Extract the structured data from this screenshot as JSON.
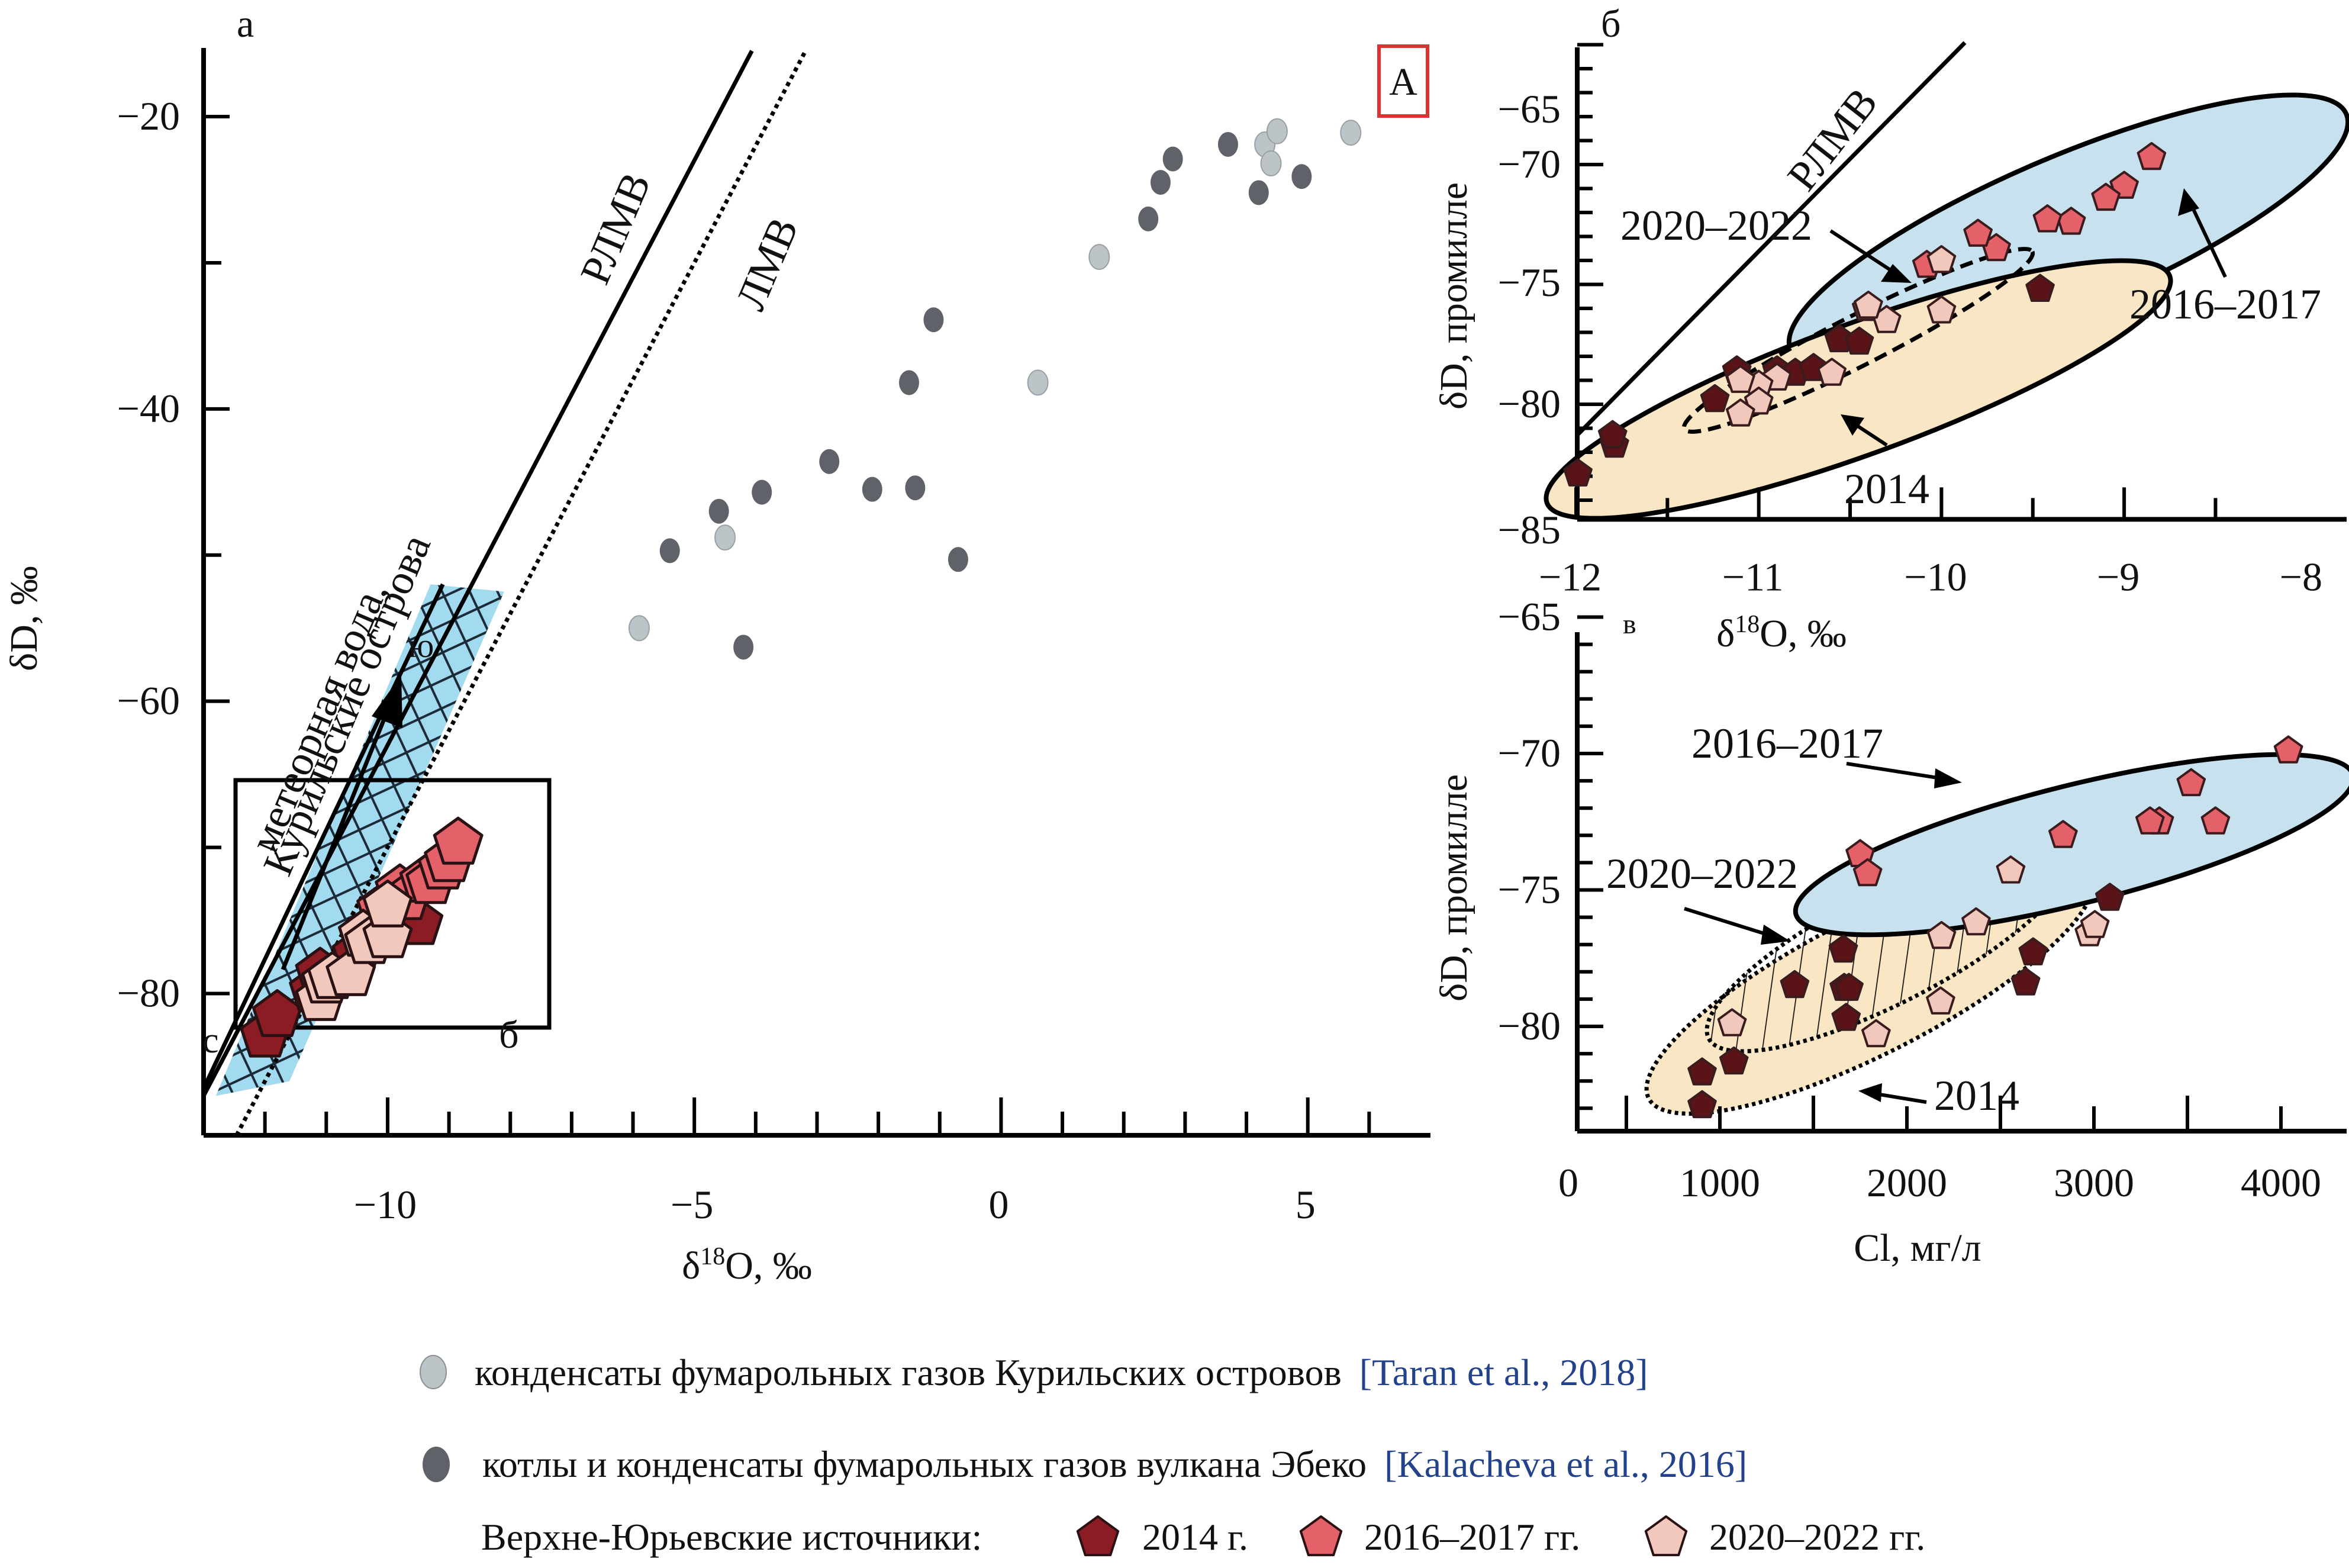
{
  "legend": {
    "taran_label": "конденсаты фумарольных газов Курильских островов",
    "taran_ref": "[Taran et al., 2018]",
    "ebeko_label": "котлы и конденсаты фумарольных газов вулкана Эбеко",
    "ebeko_ref": "[Kalacheva et al., 2016]",
    "springs_label": "Верхне-Юрьевские источники:",
    "y2014": "2014 г.",
    "y2016": "2016–2017 гг.",
    "y2020": "2020–2022 гг."
  },
  "colors": {
    "y2014": "#8b1c24",
    "y2014_dark": "#5a1418",
    "y2016": "#e5616a",
    "y2020": "#f3c8bc",
    "taran": "#bcc4c8",
    "ebeko": "#5f6369",
    "band": "#a2dbef",
    "ellipse_2016": "#c8e1ee",
    "ellipse_2014": "#f9e6c4",
    "ref_text": "#23428c",
    "badge": "#e03030"
  },
  "chart_data": [
    {
      "id": "a",
      "type": "scatter",
      "panel_label": "а",
      "badge": "А",
      "xlabel": "δ18O, ‰",
      "ylabel": "δD, ‰",
      "xlim": [
        -13.0,
        7.0
      ],
      "ylim": [
        -89.7,
        -15.3
      ],
      "xticks": [
        -10,
        -5,
        0,
        5
      ],
      "yticks": [
        -20,
        -40,
        -60,
        -80
      ],
      "lines": [
        {
          "name": "РЛМВ",
          "label": "РЛМВ",
          "style": "solid",
          "slope": 8,
          "intercept": 17
        },
        {
          "name": "ЛМВ",
          "label": "ЛМВ",
          "style": "dotted",
          "slope": 8,
          "intercept": 10
        }
      ],
      "annotations": {
        "meteoric": [
          "метеорная вода,",
          "Курильские острова"
        ],
        "north": "с",
        "south": "ю",
        "inset": "б"
      },
      "series": [
        {
          "name": "конденсаты фумарольных газов Курильских островов",
          "key": "taran",
          "points": [
            [
              -5.9,
              -55.0
            ],
            [
              -4.5,
              -48.8
            ],
            [
              0.6,
              -38.2
            ],
            [
              1.6,
              -29.6
            ],
            [
              4.3,
              -21.9
            ],
            [
              4.5,
              -21.0
            ],
            [
              4.4,
              -23.2
            ],
            [
              5.7,
              -21.1
            ]
          ]
        },
        {
          "name": "котлы и конденсаты фумарольных газов вулкана Эбеко",
          "key": "ebeko",
          "points": [
            [
              -5.4,
              -49.7
            ],
            [
              -4.6,
              -47.0
            ],
            [
              -3.9,
              -45.7
            ],
            [
              -2.8,
              -43.6
            ],
            [
              -2.1,
              -45.5
            ],
            [
              -1.4,
              -45.4
            ],
            [
              -0.7,
              -50.3
            ],
            [
              -4.2,
              -56.3
            ],
            [
              -1.5,
              -38.2
            ],
            [
              -1.1,
              -33.9
            ],
            [
              2.4,
              -27.0
            ],
            [
              2.6,
              -24.5
            ],
            [
              2.8,
              -22.9
            ],
            [
              3.7,
              -21.9
            ],
            [
              4.2,
              -25.2
            ],
            [
              4.9,
              -24.1
            ]
          ]
        },
        {
          "name": "2014 г.",
          "key": "y2014",
          "points": [
            [
              -12.0,
              -82.9
            ],
            [
              -11.8,
              -81.5
            ],
            [
              -11.2,
              -79.8
            ],
            [
              -11.1,
              -78.6
            ],
            [
              -10.8,
              -78.6
            ],
            [
              -10.5,
              -77.3
            ],
            [
              -9.5,
              -75.2
            ]
          ]
        },
        {
          "name": "2016–2017 гг.",
          "key": "y2016",
          "points": [
            [
              -10.1,
              -74.2
            ],
            [
              -9.8,
              -72.9
            ],
            [
              -9.7,
              -73.5
            ],
            [
              -9.4,
              -72.3
            ],
            [
              -9.3,
              -72.4
            ],
            [
              -9.1,
              -71.4
            ],
            [
              -9.0,
              -70.9
            ],
            [
              -8.85,
              -69.7
            ]
          ]
        },
        {
          "name": "2020–2022 гг.",
          "key": "y2020",
          "points": [
            [
              -11.1,
              -80.4
            ],
            [
              -11.0,
              -79.2
            ],
            [
              -10.9,
              -78.9
            ],
            [
              -10.6,
              -78.7
            ],
            [
              -10.4,
              -76.0
            ],
            [
              -10.3,
              -76.5
            ],
            [
              -10.0,
              -76.1
            ],
            [
              -10.0,
              -74.0
            ]
          ]
        }
      ]
    },
    {
      "id": "b",
      "type": "scatter",
      "panel_label": "б",
      "xlabel": "δ18O, ‰",
      "ylabel": "δD, промилле",
      "xlim": [
        -12,
        -8
      ],
      "ylim": [
        -85,
        -64
      ],
      "xticks": [
        -12,
        -11,
        -10,
        -9,
        -8
      ],
      "yticks": [
        -65,
        -70,
        -75,
        -80,
        -85
      ],
      "lines": [
        {
          "name": "РЛМВ",
          "label": "РЛМВ",
          "style": "solid",
          "slope": 8,
          "intercept": 17
        }
      ],
      "groups": [
        {
          "label": "2016–2017",
          "fill": "ellipse_2016"
        },
        {
          "label": "2014",
          "fill": "ellipse_2014"
        },
        {
          "label": "2020–2022",
          "fill": "none"
        }
      ],
      "series": [
        {
          "name": "2014",
          "key": "y2014",
          "points": [
            [
              -9.46,
              -75.2
            ],
            [
              -11.99,
              -82.9
            ],
            [
              -11.79,
              -81.7
            ],
            [
              -11.8,
              -81.3
            ],
            [
              -11.24,
              -79.8
            ],
            [
              -11.12,
              -78.6
            ],
            [
              -10.9,
              -78.6
            ],
            [
              -10.8,
              -78.7
            ],
            [
              -10.7,
              -78.5
            ],
            [
              -10.56,
              -77.3
            ],
            [
              -10.45,
              -77.4
            ]
          ]
        },
        {
          "name": "2016–2017",
          "key": "y2016",
          "points": [
            [
              -8.85,
              -69.7
            ],
            [
              -9.0,
              -70.9
            ],
            [
              -9.1,
              -71.4
            ],
            [
              -9.29,
              -72.4
            ],
            [
              -9.42,
              -72.3
            ],
            [
              -9.7,
              -73.5
            ],
            [
              -9.8,
              -72.9
            ],
            [
              -10.08,
              -74.2
            ]
          ]
        },
        {
          "name": "2020–2022",
          "key": "y2020",
          "points": [
            [
              -10.0,
              -74.0
            ],
            [
              -10.0,
              -76.1
            ],
            [
              -10.41,
              -76.0
            ],
            [
              -10.3,
              -76.5
            ],
            [
              -10.4,
              -75.9
            ],
            [
              -10.6,
              -78.7
            ],
            [
              -10.9,
              -78.9
            ],
            [
              -11.0,
              -79.2
            ],
            [
              -11.0,
              -79.9
            ],
            [
              -11.1,
              -80.4
            ],
            [
              -11.1,
              -79.0
            ]
          ]
        }
      ]
    },
    {
      "id": "c",
      "type": "scatter",
      "panel_label": "в",
      "xlabel": "Cl, мг/л",
      "ylabel": "δD, промилле",
      "xlim": [
        0,
        4400
      ],
      "ylim": [
        -84,
        -64
      ],
      "xticks": [
        0,
        1000,
        2000,
        3000,
        4000
      ],
      "yticks": [
        -65,
        -70,
        -75,
        -80
      ],
      "groups": [
        {
          "label": "2016–2017",
          "fill": "ellipse_2016"
        },
        {
          "label": "2020–2022",
          "fill": "hatched"
        },
        {
          "label": "2014",
          "fill": "ellipse_2014"
        }
      ],
      "series": [
        {
          "name": "2014",
          "key": "y2014",
          "points": [
            [
              3085,
              -75.3
            ],
            [
              2675,
              -77.3
            ],
            [
              2635,
              -78.4
            ],
            [
              1660,
              -77.2
            ],
            [
              1400,
              -78.5
            ],
            [
              1665,
              -78.6
            ],
            [
              1690,
              -78.6
            ],
            [
              1675,
              -79.7
            ],
            [
              905,
              -81.7
            ],
            [
              1075,
              -81.3
            ],
            [
              905,
              -82.9
            ]
          ]
        },
        {
          "name": "2016–2017",
          "key": "y2016",
          "points": [
            [
              4040,
              -69.9
            ],
            [
              3520,
              -71.1
            ],
            [
              3350,
              -72.5
            ],
            [
              3300,
              -72.5
            ],
            [
              3650,
              -72.5
            ],
            [
              2835,
              -73.0
            ],
            [
              1750,
              -73.7
            ],
            [
              1790,
              -74.4
            ]
          ]
        },
        {
          "name": "2020–2022",
          "key": "y2020",
          "points": [
            [
              2555,
              -74.3
            ],
            [
              2370,
              -76.2
            ],
            [
              2185,
              -76.7
            ],
            [
              2975,
              -76.6
            ],
            [
              3005,
              -76.3
            ],
            [
              2180,
              -79.1
            ],
            [
              1835,
              -80.3
            ],
            [
              1065,
              -79.9
            ]
          ]
        }
      ]
    }
  ]
}
